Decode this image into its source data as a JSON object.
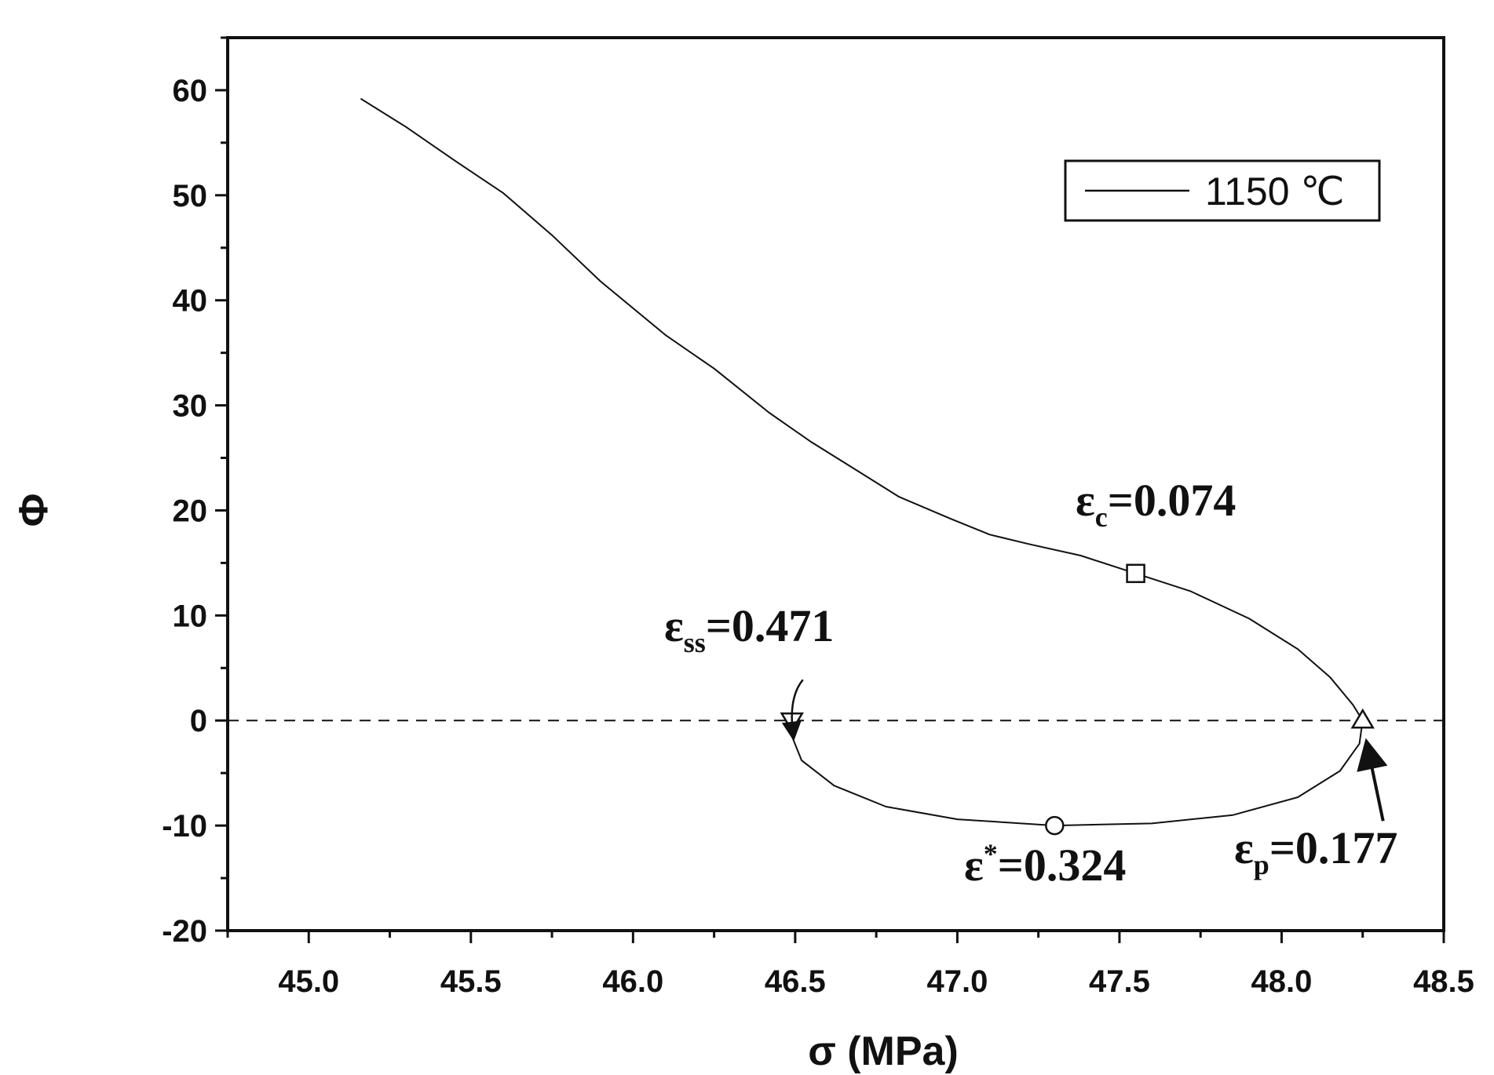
{
  "chart_data": {
    "type": "line",
    "xlabel": "σ (MPa)",
    "ylabel": "Φ",
    "xlim": [
      44.75,
      48.5
    ],
    "ylim": [
      -20,
      65
    ],
    "xticks": [
      45.0,
      45.5,
      46.0,
      46.5,
      47.0,
      47.5,
      48.0,
      48.5
    ],
    "xtick_labels": [
      "45.0",
      "45.5",
      "46.0",
      "46.5",
      "47.0",
      "47.5",
      "48.0",
      "48.5"
    ],
    "yticks": [
      -20,
      -10,
      0,
      10,
      20,
      30,
      40,
      50,
      60
    ],
    "ytick_labels": [
      "-20",
      "-10",
      "0",
      "10",
      "20",
      "30",
      "40",
      "50",
      "60"
    ],
    "legend": {
      "position": "top-right",
      "entries": [
        "1150 ℃"
      ]
    },
    "reference_line": {
      "y": 0,
      "style": "dashed"
    },
    "series": [
      {
        "name": "1150 ℃",
        "x": [
          45.16,
          45.3,
          45.45,
          45.6,
          45.75,
          45.9,
          46.1,
          46.25,
          46.42,
          46.55,
          46.68,
          46.82,
          46.98,
          47.1,
          47.22,
          47.38,
          47.55,
          47.72,
          47.9,
          48.05,
          48.15,
          48.22,
          48.25,
          48.24,
          48.18,
          48.05,
          47.85,
          47.6,
          47.3,
          47.0,
          46.78,
          46.62,
          46.52,
          46.49,
          46.5
        ],
        "y": [
          59.2,
          56.5,
          53.3,
          50.2,
          46.2,
          41.8,
          36.7,
          33.5,
          29.3,
          26.5,
          24.0,
          21.3,
          19.2,
          17.7,
          16.8,
          15.7,
          14.0,
          12.3,
          9.7,
          6.8,
          4.1,
          1.5,
          0.0,
          -2.2,
          -4.8,
          -7.3,
          -9.0,
          -9.8,
          -10.0,
          -9.4,
          -8.2,
          -6.2,
          -3.8,
          -1.5,
          0.0
        ]
      }
    ],
    "markers": [
      {
        "symbol": "square",
        "x": 47.55,
        "y": 14.0,
        "label": "ε",
        "sub": "c",
        "value": "=0.074"
      },
      {
        "symbol": "triangle-up",
        "x": 48.25,
        "y": 0.0,
        "label": "ε",
        "sub": "p",
        "value": "=0.177"
      },
      {
        "symbol": "circle",
        "x": 47.3,
        "y": -10.0,
        "label": "ε",
        "sup": "*",
        "value": "=0.324"
      },
      {
        "symbol": "triangle-down",
        "x": 46.49,
        "y": 0.0,
        "label": "ε",
        "sub": "ss",
        "value": "=0.471"
      }
    ]
  }
}
